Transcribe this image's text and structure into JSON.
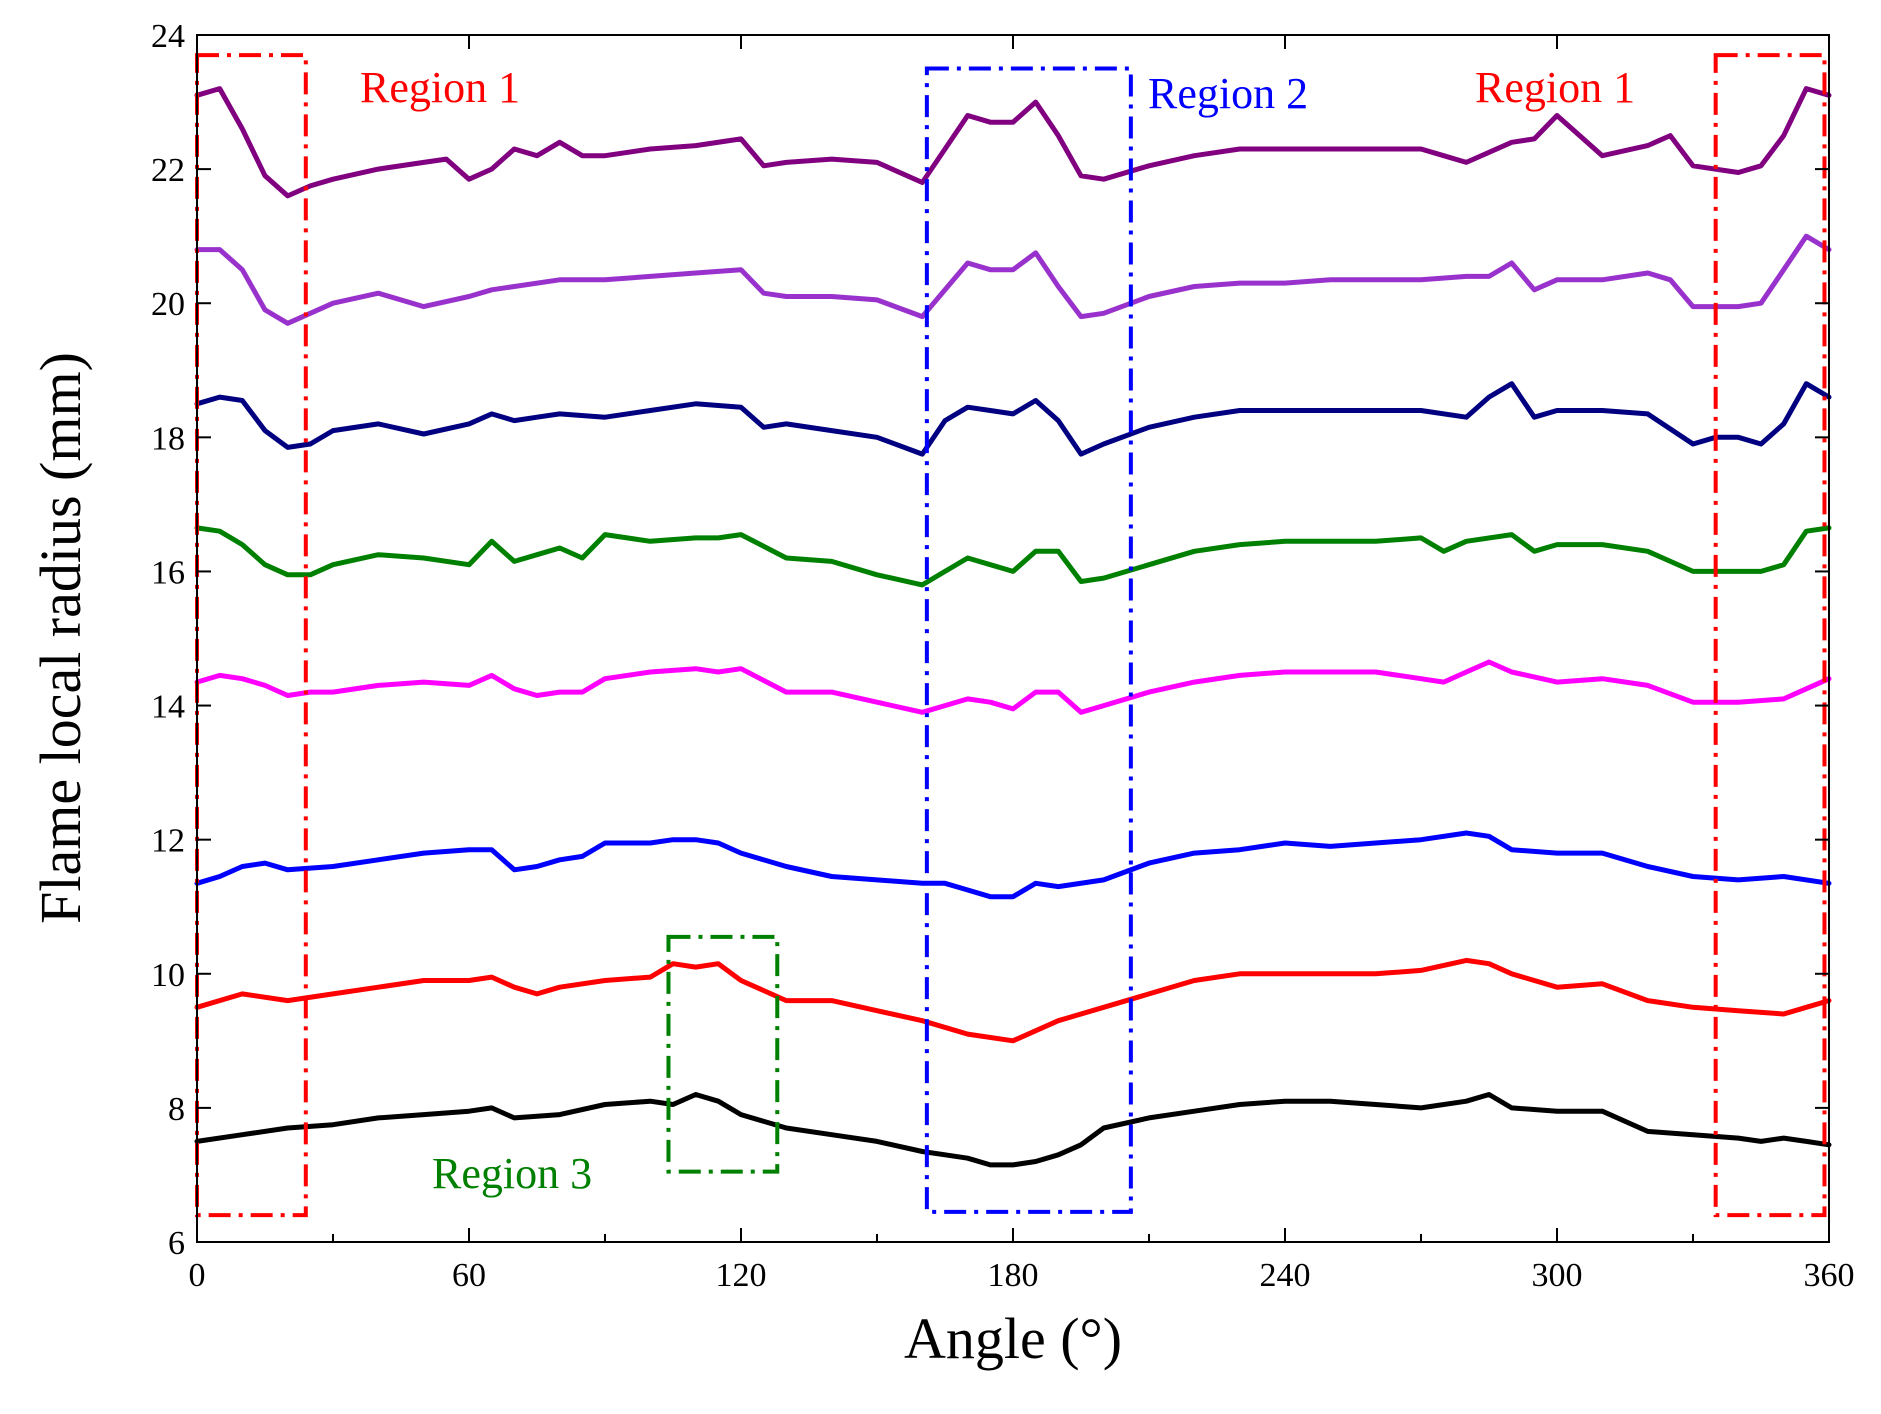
{
  "chart_data": {
    "type": "line",
    "title": "",
    "xlabel": "Angle (°)",
    "ylabel": "Flame local radius (mm)",
    "xlim": [
      0,
      360
    ],
    "ylim": [
      6,
      24
    ],
    "xticks": [
      "0",
      "60",
      "120",
      "180",
      "240",
      "300",
      "360"
    ],
    "yticks": [
      "6",
      "8",
      "10",
      "12",
      "14",
      "16",
      "18",
      "20",
      "22",
      "24"
    ],
    "grid": false,
    "legend": "none",
    "series": [
      {
        "color": "#000000",
        "x": [
          0,
          10,
          20,
          30,
          40,
          50,
          60,
          65,
          70,
          80,
          90,
          100,
          105,
          110,
          115,
          120,
          130,
          140,
          150,
          160,
          165,
          170,
          175,
          180,
          185,
          190,
          195,
          200,
          210,
          220,
          230,
          240,
          250,
          260,
          270,
          280,
          285,
          290,
          300,
          310,
          320,
          330,
          340,
          345,
          350,
          355,
          360
        ],
        "y": [
          7.5,
          7.6,
          7.7,
          7.75,
          7.85,
          7.9,
          7.95,
          8.0,
          7.85,
          7.9,
          8.05,
          8.1,
          8.05,
          8.2,
          8.1,
          7.9,
          7.7,
          7.6,
          7.5,
          7.35,
          7.3,
          7.25,
          7.15,
          7.15,
          7.2,
          7.3,
          7.45,
          7.7,
          7.85,
          7.95,
          8.05,
          8.1,
          8.1,
          8.05,
          8.0,
          8.1,
          8.2,
          8.0,
          7.95,
          7.95,
          7.65,
          7.6,
          7.55,
          7.5,
          7.55,
          7.5,
          7.45
        ]
      },
      {
        "color": "#ff0000",
        "x": [
          0,
          10,
          20,
          30,
          40,
          50,
          60,
          65,
          70,
          75,
          80,
          90,
          100,
          105,
          110,
          115,
          120,
          130,
          140,
          150,
          160,
          170,
          180,
          190,
          200,
          210,
          220,
          230,
          240,
          250,
          260,
          270,
          280,
          285,
          290,
          300,
          310,
          320,
          330,
          340,
          350,
          355,
          360
        ],
        "y": [
          9.5,
          9.7,
          9.6,
          9.7,
          9.8,
          9.9,
          9.9,
          9.95,
          9.8,
          9.7,
          9.8,
          9.9,
          9.95,
          10.15,
          10.1,
          10.15,
          9.9,
          9.6,
          9.6,
          9.45,
          9.3,
          9.1,
          9.0,
          9.3,
          9.5,
          9.7,
          9.9,
          10.0,
          10.0,
          10.0,
          10.0,
          10.05,
          10.2,
          10.15,
          10.0,
          9.8,
          9.85,
          9.6,
          9.5,
          9.45,
          9.4,
          9.5,
          9.6
        ]
      },
      {
        "color": "#0000ff",
        "x": [
          0,
          5,
          10,
          15,
          20,
          30,
          40,
          50,
          60,
          65,
          70,
          75,
          80,
          85,
          90,
          100,
          105,
          110,
          115,
          120,
          130,
          140,
          150,
          160,
          165,
          170,
          175,
          180,
          185,
          190,
          200,
          210,
          220,
          230,
          240,
          250,
          260,
          270,
          280,
          285,
          290,
          300,
          310,
          320,
          330,
          340,
          350,
          360
        ],
        "y": [
          11.35,
          11.45,
          11.6,
          11.65,
          11.55,
          11.6,
          11.7,
          11.8,
          11.85,
          11.85,
          11.55,
          11.6,
          11.7,
          11.75,
          11.95,
          11.95,
          12.0,
          12.0,
          11.95,
          11.8,
          11.6,
          11.45,
          11.4,
          11.35,
          11.35,
          11.25,
          11.15,
          11.15,
          11.35,
          11.3,
          11.4,
          11.65,
          11.8,
          11.85,
          11.95,
          11.9,
          11.95,
          12.0,
          12.1,
          12.05,
          11.85,
          11.8,
          11.8,
          11.6,
          11.45,
          11.4,
          11.45,
          11.35
        ]
      },
      {
        "color": "#ff00ff",
        "x": [
          0,
          5,
          10,
          15,
          20,
          25,
          30,
          40,
          50,
          60,
          65,
          70,
          75,
          80,
          85,
          90,
          100,
          110,
          115,
          120,
          130,
          140,
          150,
          160,
          165,
          170,
          175,
          180,
          185,
          190,
          195,
          200,
          210,
          220,
          230,
          240,
          250,
          260,
          270,
          275,
          280,
          285,
          290,
          300,
          310,
          320,
          330,
          340,
          350,
          355,
          360
        ],
        "y": [
          14.35,
          14.45,
          14.4,
          14.3,
          14.15,
          14.2,
          14.2,
          14.3,
          14.35,
          14.3,
          14.45,
          14.25,
          14.15,
          14.2,
          14.2,
          14.4,
          14.5,
          14.55,
          14.5,
          14.55,
          14.2,
          14.2,
          14.05,
          13.9,
          14.0,
          14.1,
          14.05,
          13.95,
          14.2,
          14.2,
          13.9,
          14.0,
          14.2,
          14.35,
          14.45,
          14.5,
          14.5,
          14.5,
          14.4,
          14.35,
          14.5,
          14.65,
          14.5,
          14.35,
          14.4,
          14.3,
          14.05,
          14.05,
          14.1,
          14.25,
          14.4
        ]
      },
      {
        "color": "#008000",
        "x": [
          0,
          5,
          10,
          15,
          20,
          25,
          30,
          40,
          50,
          60,
          65,
          70,
          75,
          80,
          85,
          90,
          100,
          110,
          115,
          120,
          130,
          140,
          150,
          160,
          165,
          170,
          175,
          180,
          185,
          190,
          195,
          200,
          210,
          220,
          230,
          240,
          250,
          260,
          270,
          275,
          280,
          290,
          295,
          300,
          310,
          320,
          330,
          340,
          345,
          350,
          355,
          360
        ],
        "y": [
          16.65,
          16.6,
          16.4,
          16.1,
          15.95,
          15.95,
          16.1,
          16.25,
          16.2,
          16.1,
          16.45,
          16.15,
          16.25,
          16.35,
          16.2,
          16.55,
          16.45,
          16.5,
          16.5,
          16.55,
          16.2,
          16.15,
          15.95,
          15.8,
          16.0,
          16.2,
          16.1,
          16.0,
          16.3,
          16.3,
          15.85,
          15.9,
          16.1,
          16.3,
          16.4,
          16.45,
          16.45,
          16.45,
          16.5,
          16.3,
          16.45,
          16.55,
          16.3,
          16.4,
          16.4,
          16.3,
          16.0,
          16.0,
          16.0,
          16.1,
          16.6,
          16.65
        ]
      },
      {
        "color": "#000080",
        "x": [
          0,
          5,
          10,
          15,
          20,
          25,
          30,
          40,
          50,
          60,
          65,
          70,
          75,
          80,
          90,
          100,
          110,
          120,
          125,
          130,
          140,
          150,
          160,
          165,
          170,
          175,
          180,
          185,
          190,
          195,
          200,
          210,
          220,
          230,
          240,
          250,
          260,
          270,
          280,
          285,
          290,
          295,
          300,
          310,
          320,
          330,
          335,
          340,
          345,
          350,
          355,
          360
        ],
        "y": [
          18.5,
          18.6,
          18.55,
          18.1,
          17.85,
          17.9,
          18.1,
          18.2,
          18.05,
          18.2,
          18.35,
          18.25,
          18.3,
          18.35,
          18.3,
          18.4,
          18.5,
          18.45,
          18.15,
          18.2,
          18.1,
          18.0,
          17.75,
          18.25,
          18.45,
          18.4,
          18.35,
          18.55,
          18.25,
          17.75,
          17.9,
          18.15,
          18.3,
          18.4,
          18.4,
          18.4,
          18.4,
          18.4,
          18.3,
          18.6,
          18.8,
          18.3,
          18.4,
          18.4,
          18.35,
          17.9,
          18.0,
          18.0,
          17.9,
          18.2,
          18.8,
          18.6
        ]
      },
      {
        "color": "#9932cc",
        "x": [
          0,
          5,
          10,
          15,
          20,
          25,
          30,
          40,
          50,
          60,
          65,
          70,
          80,
          90,
          100,
          110,
          120,
          125,
          130,
          140,
          150,
          160,
          165,
          170,
          175,
          180,
          185,
          190,
          195,
          200,
          210,
          220,
          230,
          240,
          250,
          260,
          270,
          280,
          285,
          290,
          295,
          300,
          310,
          320,
          325,
          330,
          340,
          345,
          350,
          355,
          360
        ],
        "y": [
          20.8,
          20.8,
          20.5,
          19.9,
          19.7,
          19.85,
          20.0,
          20.15,
          19.95,
          20.1,
          20.2,
          20.25,
          20.35,
          20.35,
          20.4,
          20.45,
          20.5,
          20.15,
          20.1,
          20.1,
          20.05,
          19.8,
          20.2,
          20.6,
          20.5,
          20.5,
          20.75,
          20.25,
          19.8,
          19.85,
          20.1,
          20.25,
          20.3,
          20.3,
          20.35,
          20.35,
          20.35,
          20.4,
          20.4,
          20.6,
          20.2,
          20.35,
          20.35,
          20.45,
          20.35,
          19.95,
          19.95,
          20.0,
          20.5,
          21.0,
          20.8
        ]
      },
      {
        "color": "#800080",
        "x": [
          0,
          5,
          10,
          15,
          20,
          25,
          30,
          40,
          50,
          55,
          60,
          65,
          70,
          75,
          80,
          85,
          90,
          100,
          110,
          120,
          125,
          130,
          140,
          150,
          160,
          165,
          170,
          175,
          180,
          185,
          190,
          195,
          200,
          210,
          220,
          230,
          240,
          250,
          260,
          270,
          275,
          280,
          290,
          295,
          300,
          310,
          320,
          325,
          330,
          340,
          345,
          350,
          355,
          360
        ],
        "y": [
          23.1,
          23.2,
          22.6,
          21.9,
          21.6,
          21.75,
          21.85,
          22.0,
          22.1,
          22.15,
          21.85,
          22.0,
          22.3,
          22.2,
          22.4,
          22.2,
          22.2,
          22.3,
          22.35,
          22.45,
          22.05,
          22.1,
          22.15,
          22.1,
          21.8,
          22.3,
          22.8,
          22.7,
          22.7,
          23.0,
          22.5,
          21.9,
          21.85,
          22.05,
          22.2,
          22.3,
          22.3,
          22.3,
          22.3,
          22.3,
          22.2,
          22.1,
          22.4,
          22.45,
          22.8,
          22.2,
          22.35,
          22.5,
          22.05,
          21.95,
          22.05,
          22.5,
          23.2,
          23.1
        ]
      }
    ],
    "annotations": [
      {
        "label": "Region 1",
        "color": "#ff0000",
        "x": [
          0,
          24
        ],
        "y": [
          6.4,
          23.7
        ]
      },
      {
        "label": "Region 1",
        "color": "#ff0000",
        "x": [
          335,
          359
        ],
        "y": [
          6.4,
          23.7
        ]
      },
      {
        "label": "Region 2",
        "color": "#0000ff",
        "x": [
          161,
          206
        ],
        "y": [
          6.45,
          23.5
        ]
      },
      {
        "label": "Region 3",
        "color": "#008000",
        "x": [
          104,
          128
        ],
        "y": [
          7.05,
          10.55
        ]
      }
    ]
  }
}
